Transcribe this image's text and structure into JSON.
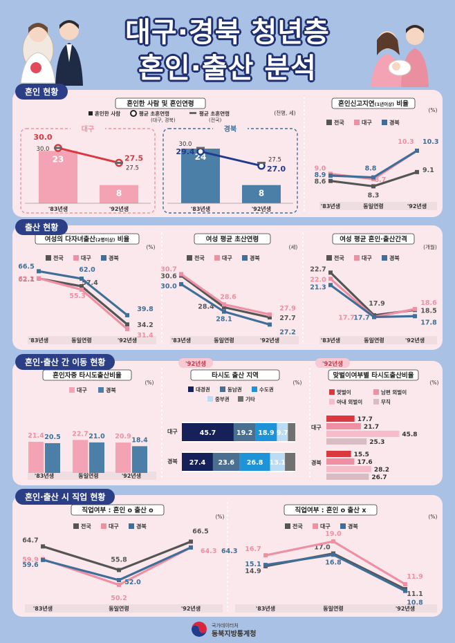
{
  "title": {
    "line1": "대구·경북 청년층",
    "line2": "혼인·출산 분석"
  },
  "sections": {
    "s1": "혼인 현황",
    "s2": "출산 현황",
    "s3": "혼인·출산 간 이동 현황",
    "s4": "혼인·출산 시 직업 현황"
  },
  "legend": {
    "nat": "전국",
    "dg": "대구",
    "gb": "경북"
  },
  "categories": [
    "'83년생",
    "동일연령",
    "'92년생"
  ],
  "colors": {
    "nat": "#555555",
    "dg": "#ef8fa3",
    "gb": "#3f6f98",
    "dg_bar": "#f3a3b4",
    "gb_bar": "#4b7fa8",
    "dg_line": "#d9383f",
    "gb_line": "#233a8c",
    "navy": "#2c3f86",
    "pink_bg": "#fbe8ec"
  },
  "footer": {
    "line1": "국가데이터처",
    "line2": "동북지방통계청"
  },
  "chart_data": [
    {
      "id": "marriage",
      "type": "bar",
      "title": "혼인한 사람 및 혼인연령",
      "unit": "(천명, 세)",
      "legend": [
        "혼인한 사람",
        "평균 초혼연령",
        "(대구, 경북)",
        "평균 초혼연령",
        "(전국)"
      ],
      "categories": [
        "'83년생",
        "'92년생"
      ],
      "panels": [
        {
          "name": "대구",
          "count": [
            23,
            8
          ],
          "age_region": [
            30.0,
            27.5
          ],
          "age_national": [
            30.0,
            27.5
          ]
        },
        {
          "name": "경북",
          "count": [
            24,
            8
          ],
          "age_region": [
            29.4,
            27.0
          ],
          "age_national": [
            30.0,
            27.5
          ]
        }
      ]
    },
    {
      "id": "delay",
      "type": "line",
      "title": "혼인신고지연",
      "title_small": "(1년이상)",
      "title_end": " 비율",
      "unit": "(%)",
      "categories": [
        "'83년생",
        "동일연령",
        "'92년생"
      ],
      "series": [
        {
          "name": "전국",
          "values": [
            8.6,
            8.3,
            9.1
          ]
        },
        {
          "name": "대구",
          "values": [
            9.0,
            8.7,
            10.3
          ]
        },
        {
          "name": "경북",
          "values": [
            8.9,
            8.8,
            10.3
          ]
        }
      ]
    },
    {
      "id": "multi",
      "type": "line",
      "title": "여성의 다자녀출산",
      "title_small": "(2명이상)",
      "title_end": " 비율",
      "unit": "(%)",
      "categories": [
        "'83년생",
        "동일연령",
        "'92년생"
      ],
      "series": [
        {
          "name": "전국",
          "values": [
            62.1,
            57.4,
            34.2
          ]
        },
        {
          "name": "대구",
          "values": [
            62.2,
            55.3,
            31.4
          ]
        },
        {
          "name": "경북",
          "values": [
            66.5,
            62.0,
            39.8
          ]
        }
      ]
    },
    {
      "id": "firstage",
      "type": "line",
      "title": "여성 평균 초산연령",
      "unit": "(세)",
      "categories": [
        "'83년생",
        "동일연령",
        "'92년생"
      ],
      "series": [
        {
          "name": "전국",
          "values": [
            30.6,
            28.4,
            27.7
          ]
        },
        {
          "name": "대구",
          "values": [
            30.7,
            28.6,
            27.9
          ]
        },
        {
          "name": "경북",
          "values": [
            30.0,
            28.1,
            27.2
          ]
        }
      ]
    },
    {
      "id": "interval",
      "type": "line",
      "title": "여성 평균 혼인·출산간격",
      "unit": "(개월)",
      "categories": [
        "'83년생",
        "동일연령",
        "'92년생"
      ],
      "series": [
        {
          "name": "전국",
          "values": [
            22.7,
            17.9,
            18.5
          ]
        },
        {
          "name": "대구",
          "values": [
            22.0,
            17.7,
            18.6
          ]
        },
        {
          "name": "경북",
          "values": [
            21.3,
            17.7,
            17.8
          ]
        }
      ]
    },
    {
      "id": "move",
      "type": "bar",
      "title": "혼인자중 타시도출산비율",
      "unit": "(%)",
      "categories": [
        "'83년생",
        "동일연령",
        "'92년생"
      ],
      "series": [
        {
          "name": "대구",
          "values": [
            21.4,
            22.7,
            20.9
          ]
        },
        {
          "name": "경북",
          "values": [
            20.5,
            21.0,
            18.4
          ]
        }
      ]
    },
    {
      "id": "region",
      "type": "bar",
      "badge": "'92년생",
      "title": "타시도 출산 지역",
      "unit": "(%)",
      "categories": [
        "대구",
        "경북"
      ],
      "legend_extra": "기타",
      "series": [
        {
          "name": "대경권",
          "values": [
            45.7,
            27.4
          ]
        },
        {
          "name": "동남권",
          "values": [
            19.2,
            23.6
          ]
        },
        {
          "name": "수도권",
          "values": [
            18.9,
            26.8
          ]
        },
        {
          "name": "중부권",
          "values": [
            9.7,
            13.1
          ]
        }
      ]
    },
    {
      "id": "dual",
      "type": "bar",
      "badge": "'92년생",
      "title": "맞벌이여부별 타시도출산비율",
      "unit": "(%)",
      "categories": [
        "대구",
        "경북"
      ],
      "series": [
        {
          "name": "맞벌이",
          "values": [
            17.7,
            15.5
          ]
        },
        {
          "name": "남편 외벌이",
          "values": [
            21.7,
            17.6
          ]
        },
        {
          "name": "아내 외벌이",
          "values": [
            45.8,
            28.2
          ]
        },
        {
          "name": "무직",
          "values": [
            25.3,
            26.7
          ]
        }
      ]
    },
    {
      "id": "job1",
      "type": "line",
      "title": "직업여부 : 혼인",
      "title_mid": " 출산 ",
      "mark": "o",
      "unit": "(%)",
      "categories": [
        "'83년생",
        "동일연령",
        "'92년생"
      ],
      "series": [
        {
          "name": "전국",
          "values": [
            64.7,
            55.8,
            66.5
          ]
        },
        {
          "name": "대구",
          "values": [
            59.9,
            50.2,
            64.3
          ]
        },
        {
          "name": "경북",
          "values": [
            59.6,
            52.0,
            64.3
          ]
        }
      ]
    },
    {
      "id": "job2",
      "type": "line",
      "title": "직업여부 : 혼인",
      "title_mid": " 출산 ",
      "mark": "o",
      "mark2": "x",
      "unit": "(%)",
      "categories": [
        "'83년생",
        "동일연령",
        "'92년생"
      ],
      "series": [
        {
          "name": "전국",
          "values": [
            14.9,
            17.0,
            11.1
          ]
        },
        {
          "name": "대구",
          "values": [
            16.7,
            19.0,
            11.9
          ]
        },
        {
          "name": "경북",
          "values": [
            15.1,
            16.8,
            10.8
          ]
        }
      ]
    }
  ]
}
